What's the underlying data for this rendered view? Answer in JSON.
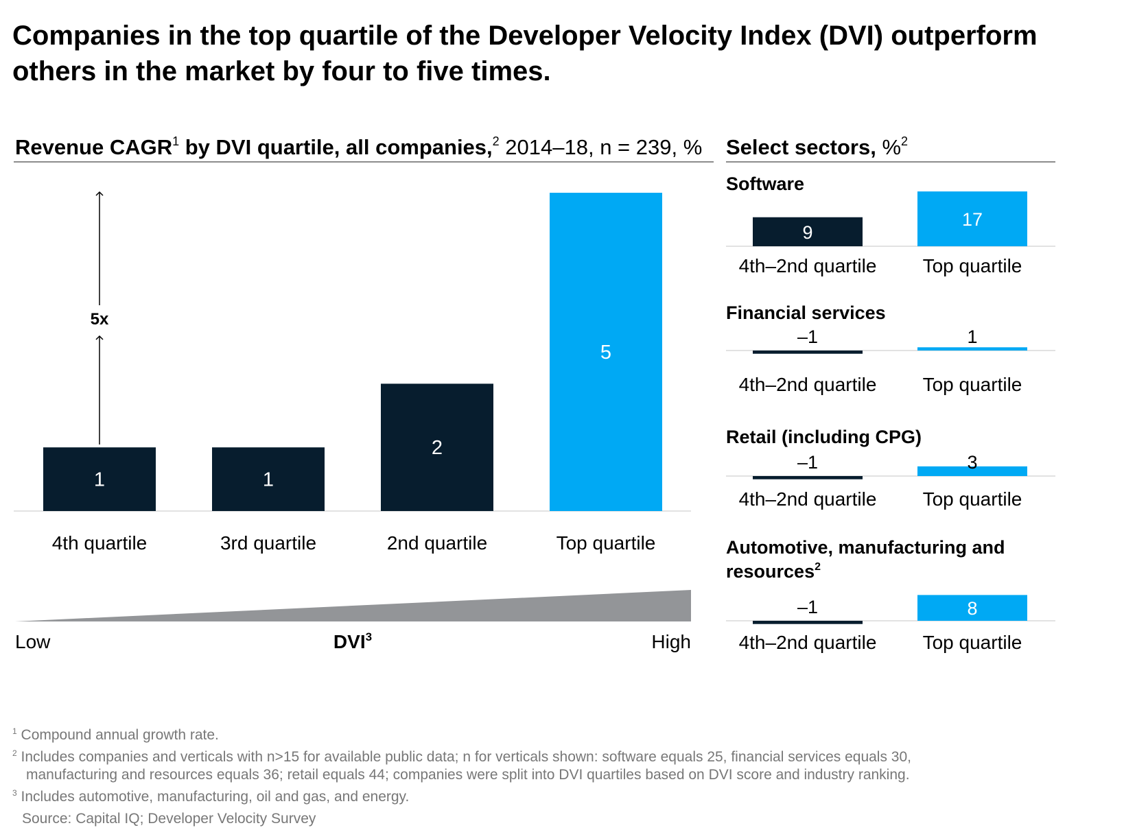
{
  "headline": "Companies in the top quartile of the Developer Velocity Index (DVI) outperform others in the market by four to five times.",
  "left_panel": {
    "title_bold": "Revenue CAGR",
    "title_sup1": "1",
    "title_bold2": " by DVI quartile, all companies,",
    "title_sup2": "2",
    "title_regular": " 2014–18, n = 239, %"
  },
  "right_panel": {
    "title_bold": "Select sectors,",
    "title_regular": " %",
    "title_sup": "2"
  },
  "annotation": {
    "multiplier_label": "5x"
  },
  "dvi_scale": {
    "low_label": "Low",
    "high_label": "High",
    "center_label": "DVI",
    "center_sup": "3"
  },
  "colors": {
    "dark": "#071d2e",
    "accent": "#00a9f4",
    "wedge": "#939598",
    "rule": "#8c8c8c",
    "baseline": "#d9d9d9"
  },
  "chart_data": [
    {
      "type": "bar",
      "title": "Revenue CAGR by DVI quartile, all companies, 2014–18, n = 239, %",
      "categories": [
        "4th quartile",
        "3rd quartile",
        "2nd quartile",
        "Top quartile"
      ],
      "values": [
        1,
        1,
        2,
        5
      ],
      "colors": [
        "#071d2e",
        "#071d2e",
        "#071d2e",
        "#00a9f4"
      ]
    },
    {
      "type": "bar",
      "title": "Software",
      "categories": [
        "4th–2nd quartile",
        "Top quartile"
      ],
      "values": [
        9,
        17
      ],
      "labels": [
        "9",
        "17"
      ],
      "colors": [
        "#071d2e",
        "#00a9f4"
      ]
    },
    {
      "type": "bar",
      "title": "Financial services",
      "categories": [
        "4th–2nd quartile",
        "Top quartile"
      ],
      "values": [
        -1,
        1
      ],
      "labels": [
        "–1",
        "1"
      ],
      "colors": [
        "#071d2e",
        "#00a9f4"
      ]
    },
    {
      "type": "bar",
      "title": "Retail (including CPG)",
      "categories": [
        "4th–2nd quartile",
        "Top quartile"
      ],
      "values": [
        -1,
        3
      ],
      "labels": [
        "–1",
        "3"
      ],
      "colors": [
        "#071d2e",
        "#00a9f4"
      ]
    },
    {
      "type": "bar",
      "title": "Automotive, manufacturing and resources",
      "title_line1": "Automotive, manufacturing and",
      "title_line2": "resources",
      "title_sup": "2",
      "categories": [
        "4th–2nd quartile",
        "Top quartile"
      ],
      "values": [
        -1,
        8
      ],
      "labels": [
        "–1",
        "8"
      ],
      "colors": [
        "#071d2e",
        "#00a9f4"
      ]
    }
  ],
  "footnotes": [
    {
      "mark": "1",
      "text": "Compound annual growth rate."
    },
    {
      "mark": "2",
      "text": "Includes companies and verticals with n>15 for available public data; n for verticals shown: software equals 25, financial services equals 30,",
      "cont": "manufacturing and resources equals 36; retail equals 44; companies were split into DVI quartiles based on DVI score and industry ranking."
    },
    {
      "mark": "3",
      "text": "Includes automotive, manufacturing, oil and gas, and energy."
    }
  ],
  "source": "Source: Capital IQ; Developer Velocity Survey"
}
